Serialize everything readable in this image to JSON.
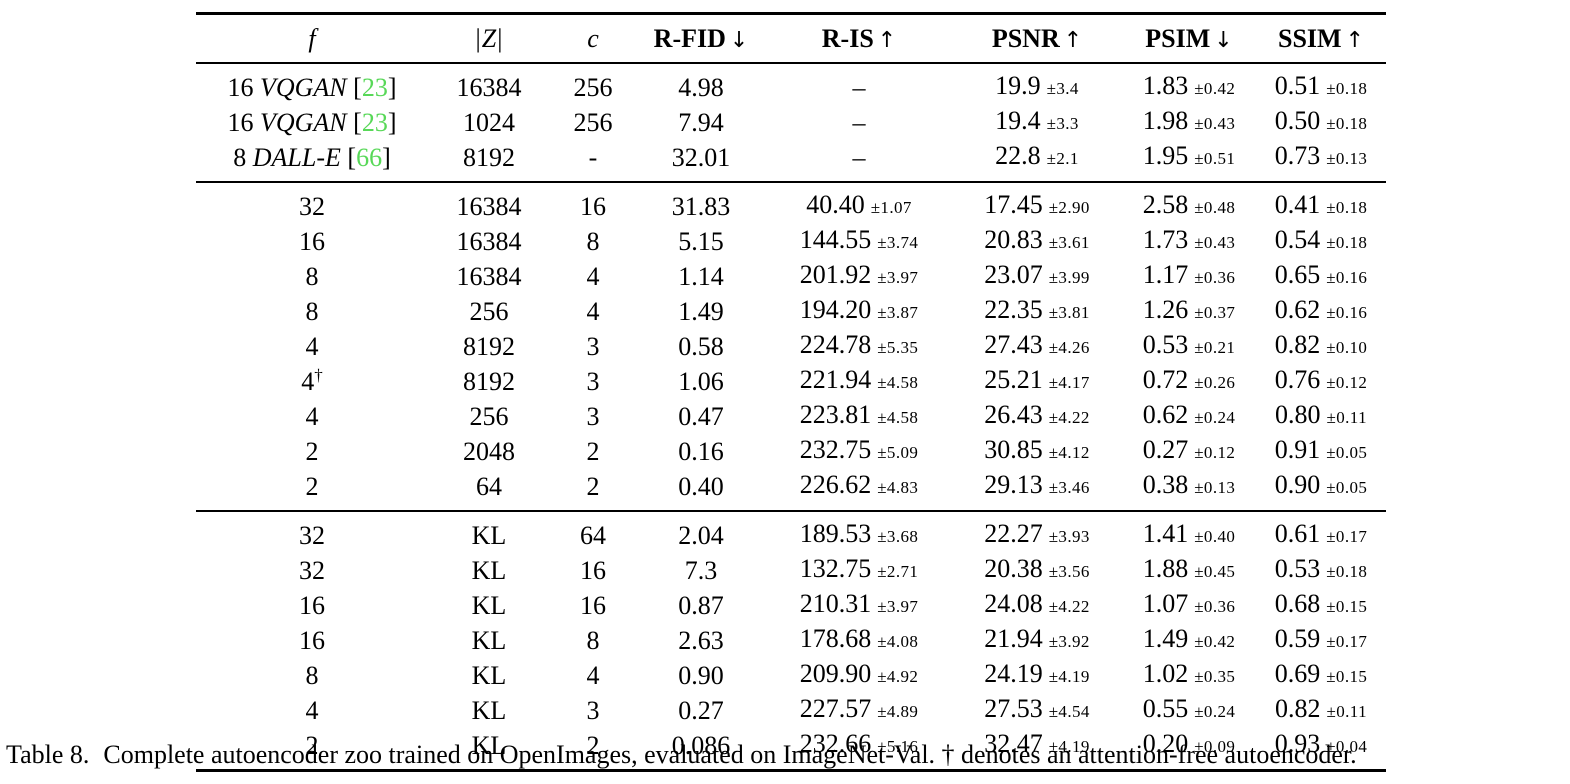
{
  "colors": {
    "citation_green": "#58d858"
  },
  "table": {
    "headers": [
      {
        "text": "f",
        "math": true
      },
      {
        "text": "Z",
        "math": true,
        "bars": true
      },
      {
        "text": "c",
        "math": true
      },
      {
        "text": "R-FID",
        "arrow": "↓"
      },
      {
        "text": "R-IS",
        "arrow": "↑"
      },
      {
        "text": "PSNR",
        "arrow": "↑"
      },
      {
        "text": "PSIM",
        "arrow": "↓"
      },
      {
        "text": "SSIM",
        "arrow": "↑"
      }
    ],
    "groups": [
      {
        "rows": [
          {
            "f": {
              "num": "16",
              "model": "VQGAN",
              "cite": "23"
            },
            "z": "16384",
            "c": "256",
            "rfid": "4.98",
            "ris": {
              "v": "–",
              "pm": ""
            },
            "psnr": {
              "v": "19.9",
              "pm": "±3.4"
            },
            "psim": {
              "v": "1.83",
              "pm": "±0.42"
            },
            "ssim": {
              "v": "0.51",
              "pm": "±0.18"
            }
          },
          {
            "f": {
              "num": "16",
              "model": "VQGAN",
              "cite": "23"
            },
            "z": "1024",
            "c": "256",
            "rfid": "7.94",
            "ris": {
              "v": "–",
              "pm": ""
            },
            "psnr": {
              "v": "19.4",
              "pm": "±3.3"
            },
            "psim": {
              "v": "1.98",
              "pm": "±0.43"
            },
            "ssim": {
              "v": "0.50",
              "pm": "±0.18"
            }
          },
          {
            "f": {
              "num": "8",
              "model": "DALL-E",
              "cite": "66"
            },
            "z": "8192",
            "c": "-",
            "rfid": "32.01",
            "ris": {
              "v": "–",
              "pm": ""
            },
            "psnr": {
              "v": "22.8",
              "pm": "±2.1"
            },
            "psim": {
              "v": "1.95",
              "pm": "±0.51"
            },
            "ssim": {
              "v": "0.73",
              "pm": "±0.13"
            }
          }
        ]
      },
      {
        "rows": [
          {
            "f": {
              "num": "32"
            },
            "z": "16384",
            "c": "16",
            "rfid": "31.83",
            "ris": {
              "v": "40.40",
              "pm": "±1.07"
            },
            "psnr": {
              "v": "17.45",
              "pm": "±2.90"
            },
            "psim": {
              "v": "2.58",
              "pm": "±0.48"
            },
            "ssim": {
              "v": "0.41",
              "pm": "±0.18"
            }
          },
          {
            "f": {
              "num": "16"
            },
            "z": "16384",
            "c": "8",
            "rfid": "5.15",
            "ris": {
              "v": "144.55",
              "pm": "±3.74"
            },
            "psnr": {
              "v": "20.83",
              "pm": "±3.61"
            },
            "psim": {
              "v": "1.73",
              "pm": "±0.43"
            },
            "ssim": {
              "v": "0.54",
              "pm": "±0.18"
            }
          },
          {
            "f": {
              "num": "8"
            },
            "z": "16384",
            "c": "4",
            "rfid": "1.14",
            "ris": {
              "v": "201.92",
              "pm": "±3.97"
            },
            "psnr": {
              "v": "23.07",
              "pm": "±3.99"
            },
            "psim": {
              "v": "1.17",
              "pm": "±0.36"
            },
            "ssim": {
              "v": "0.65",
              "pm": "±0.16"
            }
          },
          {
            "f": {
              "num": "8"
            },
            "z": "256",
            "c": "4",
            "rfid": "1.49",
            "ris": {
              "v": "194.20",
              "pm": "±3.87"
            },
            "psnr": {
              "v": "22.35",
              "pm": "±3.81"
            },
            "psim": {
              "v": "1.26",
              "pm": "±0.37"
            },
            "ssim": {
              "v": "0.62",
              "pm": "±0.16"
            }
          },
          {
            "f": {
              "num": "4"
            },
            "z": "8192",
            "c": "3",
            "rfid": "0.58",
            "ris": {
              "v": "224.78",
              "pm": "±5.35"
            },
            "psnr": {
              "v": "27.43",
              "pm": "±4.26"
            },
            "psim": {
              "v": "0.53",
              "pm": "±0.21"
            },
            "ssim": {
              "v": "0.82",
              "pm": "±0.10"
            }
          },
          {
            "f": {
              "num": "4",
              "sup": "†"
            },
            "z": "8192",
            "c": "3",
            "rfid": "1.06",
            "ris": {
              "v": "221.94",
              "pm": "±4.58"
            },
            "psnr": {
              "v": "25.21",
              "pm": "±4.17"
            },
            "psim": {
              "v": "0.72",
              "pm": "±0.26"
            },
            "ssim": {
              "v": "0.76",
              "pm": "±0.12"
            }
          },
          {
            "f": {
              "num": "4"
            },
            "z": "256",
            "c": "3",
            "rfid": "0.47",
            "ris": {
              "v": "223.81",
              "pm": "±4.58"
            },
            "psnr": {
              "v": "26.43",
              "pm": "±4.22"
            },
            "psim": {
              "v": "0.62",
              "pm": "±0.24"
            },
            "ssim": {
              "v": "0.80",
              "pm": "±0.11"
            }
          },
          {
            "f": {
              "num": "2"
            },
            "z": "2048",
            "c": "2",
            "rfid": "0.16",
            "ris": {
              "v": "232.75",
              "pm": "±5.09"
            },
            "psnr": {
              "v": "30.85",
              "pm": "±4.12"
            },
            "psim": {
              "v": "0.27",
              "pm": "±0.12"
            },
            "ssim": {
              "v": "0.91",
              "pm": "±0.05"
            }
          },
          {
            "f": {
              "num": "2"
            },
            "z": "64",
            "c": "2",
            "rfid": "0.40",
            "ris": {
              "v": "226.62",
              "pm": "±4.83"
            },
            "psnr": {
              "v": "29.13",
              "pm": "±3.46"
            },
            "psim": {
              "v": "0.38",
              "pm": "±0.13"
            },
            "ssim": {
              "v": "0.90",
              "pm": "±0.05"
            }
          }
        ]
      },
      {
        "rows": [
          {
            "f": {
              "num": "32"
            },
            "z": "KL",
            "c": "64",
            "rfid": "2.04",
            "ris": {
              "v": "189.53",
              "pm": "±3.68"
            },
            "psnr": {
              "v": "22.27",
              "pm": "±3.93"
            },
            "psim": {
              "v": "1.41",
              "pm": "±0.40"
            },
            "ssim": {
              "v": "0.61",
              "pm": "±0.17"
            }
          },
          {
            "f": {
              "num": "32"
            },
            "z": "KL",
            "c": "16",
            "rfid": "7.3",
            "ris": {
              "v": "132.75",
              "pm": "±2.71"
            },
            "psnr": {
              "v": "20.38",
              "pm": "±3.56"
            },
            "psim": {
              "v": "1.88",
              "pm": "±0.45"
            },
            "ssim": {
              "v": "0.53",
              "pm": "±0.18"
            }
          },
          {
            "f": {
              "num": "16"
            },
            "z": "KL",
            "c": "16",
            "rfid": "0.87",
            "ris": {
              "v": "210.31",
              "pm": "±3.97"
            },
            "psnr": {
              "v": "24.08",
              "pm": "±4.22"
            },
            "psim": {
              "v": "1.07",
              "pm": "±0.36"
            },
            "ssim": {
              "v": "0.68",
              "pm": "±0.15"
            }
          },
          {
            "f": {
              "num": "16"
            },
            "z": "KL",
            "c": "8",
            "rfid": "2.63",
            "ris": {
              "v": "178.68",
              "pm": "±4.08"
            },
            "psnr": {
              "v": "21.94",
              "pm": "±3.92"
            },
            "psim": {
              "v": "1.49",
              "pm": "±0.42"
            },
            "ssim": {
              "v": "0.59",
              "pm": "±0.17"
            }
          },
          {
            "f": {
              "num": "8"
            },
            "z": "KL",
            "c": "4",
            "rfid": "0.90",
            "ris": {
              "v": "209.90",
              "pm": "±4.92"
            },
            "psnr": {
              "v": "24.19",
              "pm": "±4.19"
            },
            "psim": {
              "v": "1.02",
              "pm": "±0.35"
            },
            "ssim": {
              "v": "0.69",
              "pm": "±0.15"
            }
          },
          {
            "f": {
              "num": "4"
            },
            "z": "KL",
            "c": "3",
            "rfid": "0.27",
            "ris": {
              "v": "227.57",
              "pm": "±4.89"
            },
            "psnr": {
              "v": "27.53",
              "pm": "±4.54"
            },
            "psim": {
              "v": "0.55",
              "pm": "±0.24"
            },
            "ssim": {
              "v": "0.82",
              "pm": "±0.11"
            }
          },
          {
            "f": {
              "num": "2"
            },
            "z": "KL",
            "c": "2",
            "rfid": "0.086",
            "ris": {
              "v": "232.66",
              "pm": "±5.16"
            },
            "psnr": {
              "v": "32.47",
              "pm": "±4.19"
            },
            "psim": {
              "v": "0.20",
              "pm": "±0.09"
            },
            "ssim": {
              "v": "0.93",
              "pm": "±0.04"
            }
          }
        ]
      }
    ]
  },
  "caption": {
    "label": "Table 8.",
    "text": "Complete autoencoder zoo trained on OpenImages, evaluated on ImageNet-Val. † denotes an attention-free autoencoder."
  }
}
